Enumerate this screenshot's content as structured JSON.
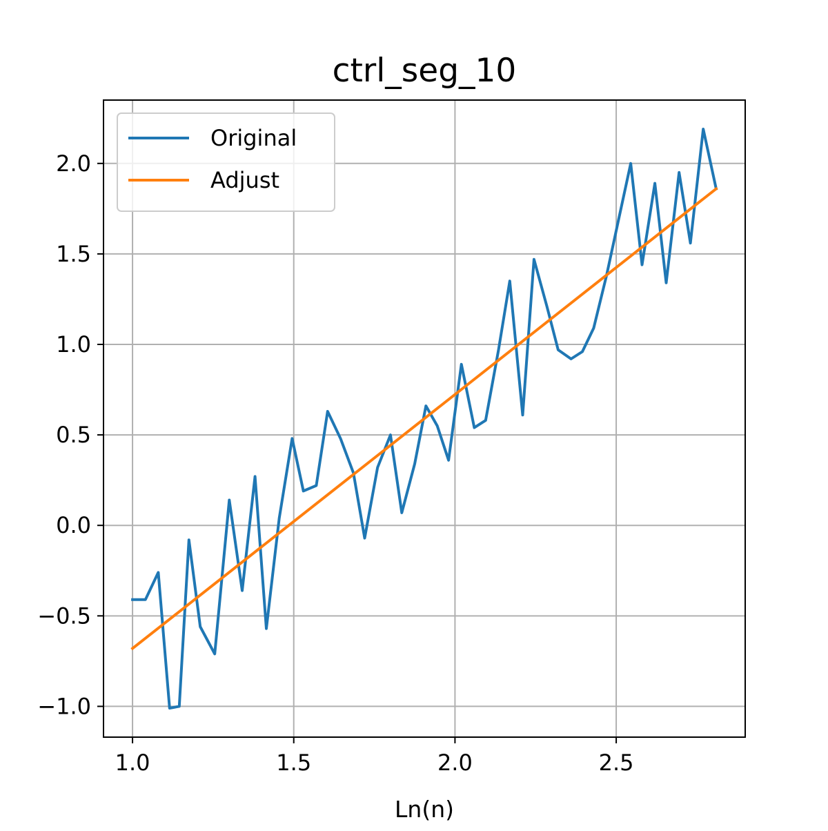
{
  "chart_data": {
    "type": "line",
    "title": "ctrl_seg_10",
    "xlabel": "Ln(n)",
    "ylabel": "",
    "xlim": [
      0.91,
      2.9
    ],
    "ylim": [
      -1.17,
      2.35
    ],
    "xticks": [
      1.0,
      1.5,
      2.0,
      2.5
    ],
    "xtick_labels": [
      "1.0",
      "1.5",
      "2.0",
      "2.5"
    ],
    "yticks": [
      -1.0,
      -0.5,
      0.0,
      0.5,
      1.0,
      1.5,
      2.0
    ],
    "ytick_labels": [
      "−1.0",
      "−0.5",
      "0.0",
      "0.5",
      "1.0",
      "1.5",
      "2.0"
    ],
    "grid": true,
    "legend_position": "top-left",
    "series": [
      {
        "name": "Original",
        "color": "#1f77b4",
        "x": [
          1.0,
          1.04,
          1.08,
          1.115,
          1.145,
          1.175,
          1.21,
          1.255,
          1.3,
          1.34,
          1.38,
          1.415,
          1.455,
          1.495,
          1.53,
          1.57,
          1.605,
          1.645,
          1.685,
          1.72,
          1.76,
          1.8,
          1.835,
          1.875,
          1.91,
          1.945,
          1.98,
          2.02,
          2.06,
          2.095,
          2.135,
          2.17,
          2.21,
          2.245,
          2.285,
          2.32,
          2.36,
          2.395,
          2.43,
          2.47,
          2.505,
          2.545,
          2.58,
          2.62,
          2.655,
          2.695,
          2.73,
          2.77,
          2.81
        ],
        "y": [
          -0.41,
          -0.41,
          -0.26,
          -1.01,
          -1.0,
          -0.08,
          -0.56,
          -0.71,
          0.14,
          -0.36,
          0.27,
          -0.57,
          0.04,
          0.48,
          0.19,
          0.22,
          0.63,
          0.48,
          0.29,
          -0.07,
          0.32,
          0.5,
          0.07,
          0.34,
          0.66,
          0.55,
          0.36,
          0.89,
          0.54,
          0.58,
          0.97,
          1.35,
          0.61,
          1.47,
          1.21,
          0.97,
          0.92,
          0.96,
          1.09,
          1.38,
          1.67,
          2.0,
          1.44,
          1.89,
          1.34,
          1.95,
          1.56,
          2.19,
          1.86
        ]
      },
      {
        "name": "Adjust",
        "color": "#ff7f0e",
        "x": [
          1.0,
          2.81
        ],
        "y": [
          -0.68,
          1.86
        ]
      }
    ]
  }
}
